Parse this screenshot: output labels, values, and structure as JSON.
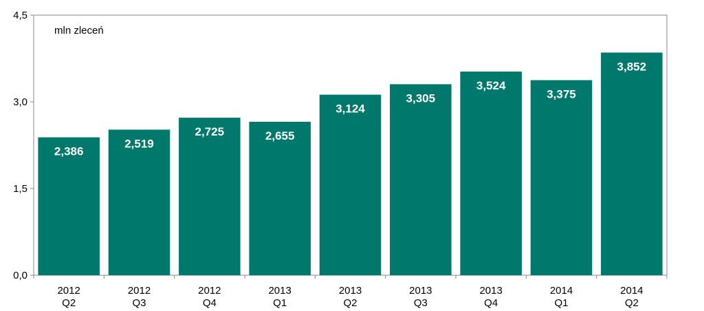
{
  "chart_data": {
    "type": "bar",
    "unit_label": "mln zleceń",
    "categories": [
      [
        "2012",
        "Q2"
      ],
      [
        "2012",
        "Q3"
      ],
      [
        "2012",
        "Q4"
      ],
      [
        "2013",
        "Q1"
      ],
      [
        "2013",
        "Q2"
      ],
      [
        "2013",
        "Q3"
      ],
      [
        "2013",
        "Q4"
      ],
      [
        "2014",
        "Q1"
      ],
      [
        "2014",
        "Q2"
      ]
    ],
    "values": [
      2.386,
      2.519,
      2.725,
      2.655,
      3.124,
      3.305,
      3.524,
      3.375,
      3.852
    ],
    "value_labels": [
      "2,386",
      "2,519",
      "2,725",
      "2,655",
      "3,124",
      "3,305",
      "3,524",
      "3,375",
      "3,852"
    ],
    "ylim": [
      0,
      4.5
    ],
    "yticks": [
      0,
      1.5,
      3.0,
      4.5
    ],
    "ytick_labels": [
      "0,0",
      "1,5",
      "3,0",
      "4,5"
    ],
    "grid": false,
    "legend": "none",
    "bar_color": "#00786B",
    "label_color": "#FFFFFF"
  }
}
